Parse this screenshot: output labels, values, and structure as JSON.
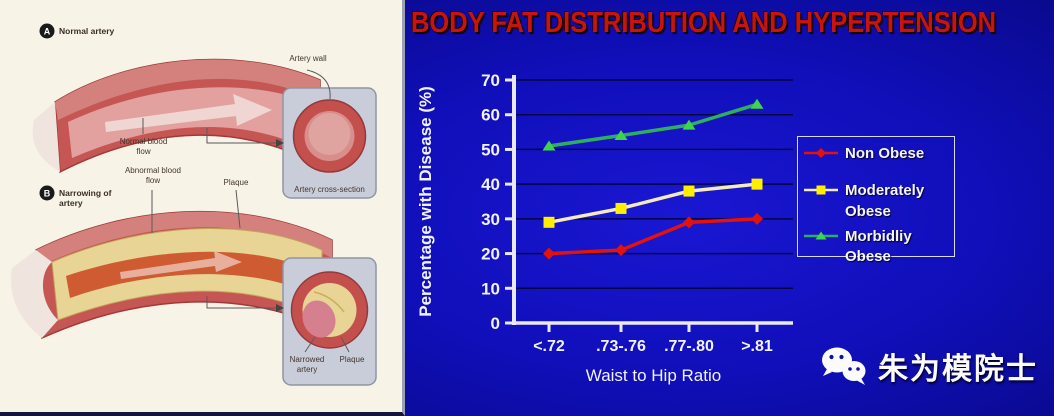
{
  "diagram": {
    "fig_a": {
      "badge": "A",
      "label": "Normal artery",
      "artery_wall": "Artery wall",
      "blood_flow": "Normal blood flow",
      "cross_section": "Artery cross-section"
    },
    "fig_b": {
      "badge": "B",
      "label": "Narrowing of artery",
      "blood_flow": "Abnormal blood flow",
      "plaque": "Plaque",
      "narrowed_artery": "Narrowed artery",
      "plaque_inset": "Plaque"
    }
  },
  "chart_data": {
    "type": "line",
    "title": "BODY FAT DISTRIBUTION AND HYPERTENSION",
    "title_color": "#c8150c",
    "xlabel": "Waist to Hip Ratio",
    "ylabel": "Percentage with Disease (%)",
    "categories": [
      "<.72",
      ".73-.76",
      ".77-.80",
      ">.81"
    ],
    "ylim": [
      0,
      70
    ],
    "ytick_step": 10,
    "grid": true,
    "legend_position": "right",
    "background": "#0d0dae",
    "axis_color": "#e9e9f5",
    "gridline_color": "#050545",
    "series": [
      {
        "name": "Non Obese",
        "color": "#e3130b",
        "marker": "diamond",
        "marker_color": "#e3130b",
        "values": [
          20,
          21,
          29,
          30
        ]
      },
      {
        "name": "Moderately Obese",
        "color": "#f2ecc0",
        "marker": "square",
        "marker_color": "#ffee00",
        "values": [
          29,
          33,
          38,
          40
        ]
      },
      {
        "name": "Morbidliy Obese",
        "color": "#2fae5e",
        "marker": "triangle",
        "marker_color": "#3ed44b",
        "values": [
          51,
          54,
          57,
          63
        ]
      }
    ]
  },
  "watermark": {
    "text": "朱为模院士",
    "icon": "wechat-icon"
  }
}
